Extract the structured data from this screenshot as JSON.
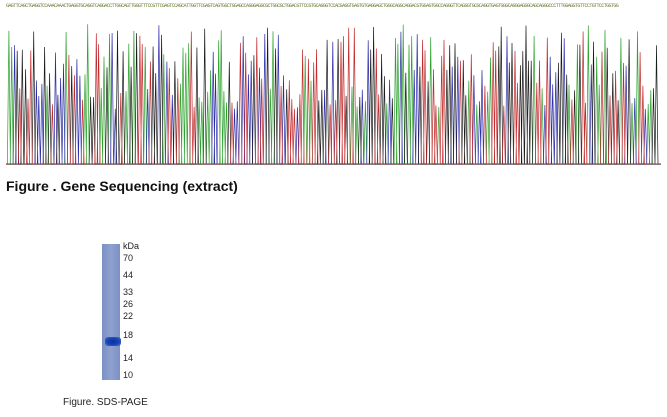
{
  "sequencing": {
    "title": "Figure . Gene Sequencing (extract)",
    "sequence_header": "GAGTTCAGCTGAGGTCCAAACAAACTGAGGTGCAGGTCAGGACCTTGGCAGTTGGGTTTCCGTTCGAGTCCAGCATTGGTTCGAGTCAGTGGCTGGAGCCAGGGAGGCGCTGGCGCTGGACGTTCCGTGCAGGGTCCACGAGGTGAGTGTGAGGAGCTGGGCAGGCAGGACGTGGAGTGGCCAGGGTTCAGGGTGCGCAGGTGAGTGGGCAGGGAGGGCAGCAGGGCCCTTTGGAGGTGTTCCTGTTCCTGGTGG",
    "trace_colors": {
      "A": "#2ca02c",
      "C": "#2a2aa8",
      "G": "#1a1a1a",
      "T": "#c0282a"
    }
  },
  "sds_page": {
    "caption": "Figure. SDS-PAGE",
    "unit_label": "kDa",
    "markers": [
      "70",
      "44",
      "33",
      "26",
      "22",
      "18",
      "14",
      "10"
    ],
    "band_kda": 17
  }
}
